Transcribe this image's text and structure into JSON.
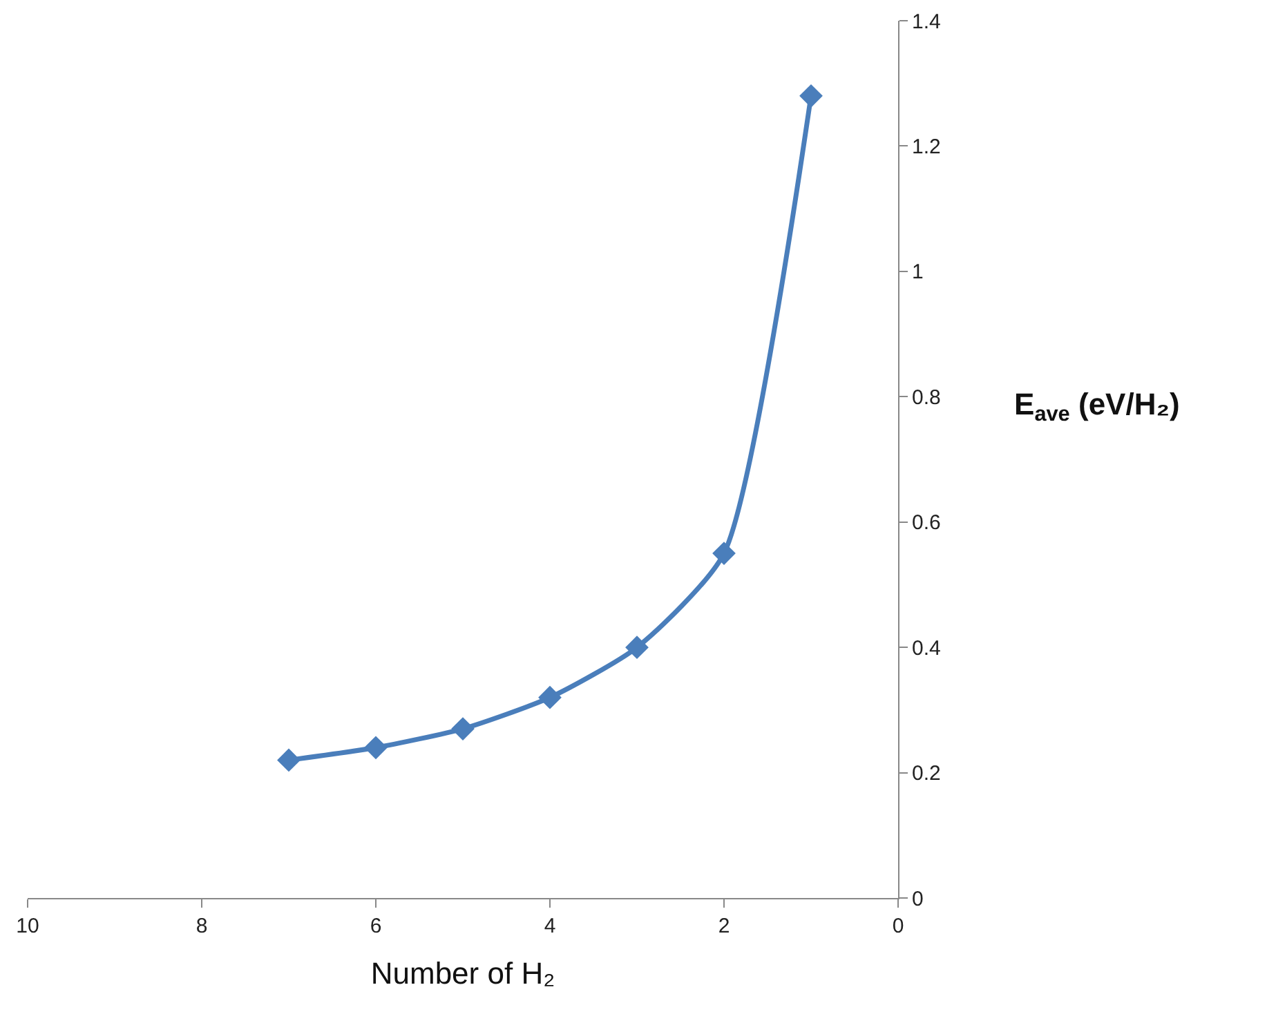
{
  "chart_data": {
    "type": "line",
    "xlabel": "Number of H₂",
    "ylabel": "E$_{ave}$ (eV/H₂)",
    "x": [
      7,
      6,
      5,
      4,
      3,
      2,
      1
    ],
    "series": [
      {
        "color": "#4a7ebb",
        "values": [
          0.22,
          0.24,
          0.27,
          0.32,
          0.4,
          0.55,
          1.28
        ]
      }
    ],
    "xlim": [
      10,
      0
    ],
    "xticks": [
      10,
      8,
      6,
      4,
      2,
      0
    ],
    "ylim": [
      0,
      1.4
    ],
    "yticks": [
      0,
      0.2,
      0.4,
      0.6,
      0.8,
      1,
      1.2,
      1.4
    ],
    "grid": false,
    "legend": false,
    "marker": "diamond",
    "line_style": "solid"
  }
}
